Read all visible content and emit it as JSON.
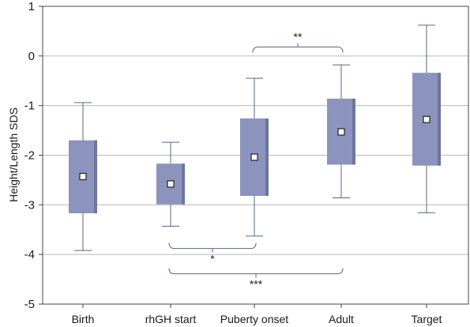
{
  "chart_data": {
    "type": "boxplot",
    "title": "",
    "xlabel": "",
    "ylabel": "Height/Length SDS",
    "ylim": [
      -5,
      1
    ],
    "yticks": [
      "1",
      "0",
      "-1",
      "-2",
      "-3",
      "-4",
      "-5"
    ],
    "grid": "horizontal",
    "colors": {
      "box": "#8c93bd",
      "box_shadow": "#6e759e",
      "whisker": "#5c6486",
      "grid": "#b9b9b9",
      "axis": "#444444"
    },
    "categories": [
      "Birth",
      "rhGH start",
      "Puberty onset",
      "Adult",
      "Target"
    ],
    "boxes": [
      {
        "category": "Birth",
        "whisker_low": -3.92,
        "q1": -3.17,
        "median": -2.43,
        "q3": -1.7,
        "whisker_high": -0.94
      },
      {
        "category": "rhGH start",
        "whisker_low": -3.43,
        "q1": -2.99,
        "median": -2.58,
        "q3": -2.17,
        "whisker_high": -1.74
      },
      {
        "category": "Puberty onset",
        "whisker_low": -3.63,
        "q1": -2.82,
        "median": -2.04,
        "q3": -1.26,
        "whisker_high": -0.45
      },
      {
        "category": "Adult",
        "whisker_low": -2.86,
        "q1": -2.19,
        "median": -1.53,
        "q3": -0.86,
        "whisker_high": -0.18
      },
      {
        "category": "Target",
        "whisker_low": -3.16,
        "q1": -2.21,
        "median": -1.28,
        "q3": -0.34,
        "whisker_high": 0.62
      }
    ],
    "annotations": [
      {
        "label": "**",
        "from": "Puberty onset",
        "to": "Adult",
        "side": "top"
      },
      {
        "label": "*",
        "from": "rhGH start",
        "to": "Puberty onset",
        "side": "bottom"
      },
      {
        "label": "***",
        "from": "rhGH start",
        "to": "Adult",
        "side": "bottom"
      }
    ]
  }
}
